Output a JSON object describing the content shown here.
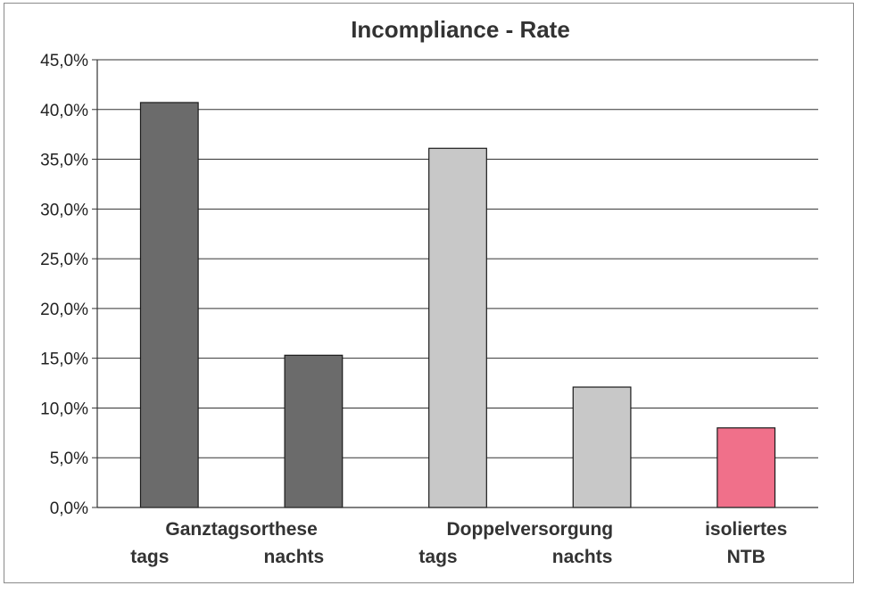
{
  "chart_data": {
    "type": "bar",
    "title": "Incompliance - Rate",
    "xlabel": "",
    "ylabel": "",
    "ylim": [
      0,
      45
    ],
    "y_ticks": [
      "0,0%",
      "5,0%",
      "10,0%",
      "15,0%",
      "20,0%",
      "25,0%",
      "30,0%",
      "35,0%",
      "40,0%",
      "45,0%"
    ],
    "grid": true,
    "legend": "none",
    "groups": [
      {
        "line1": "Ganztagsorthese",
        "line2_left": "tags",
        "line2_right": "nachts"
      },
      {
        "line1": "Doppelversorgung",
        "line2_left": "tags",
        "line2_right": "nachts"
      },
      {
        "line1": "isoliertes",
        "line2": "NTB"
      }
    ],
    "categories": [
      "Ganztagsorthese tags",
      "Ganztagsorthese nachts",
      "Doppelversorgung tags",
      "Doppelversorgung nachts",
      "isoliertes NTB"
    ],
    "values": [
      40.7,
      15.3,
      36.1,
      12.1,
      8.0
    ],
    "colors": [
      "#6b6b6b",
      "#6b6b6b",
      "#c8c8c8",
      "#c8c8c8",
      "#f0708a"
    ]
  }
}
